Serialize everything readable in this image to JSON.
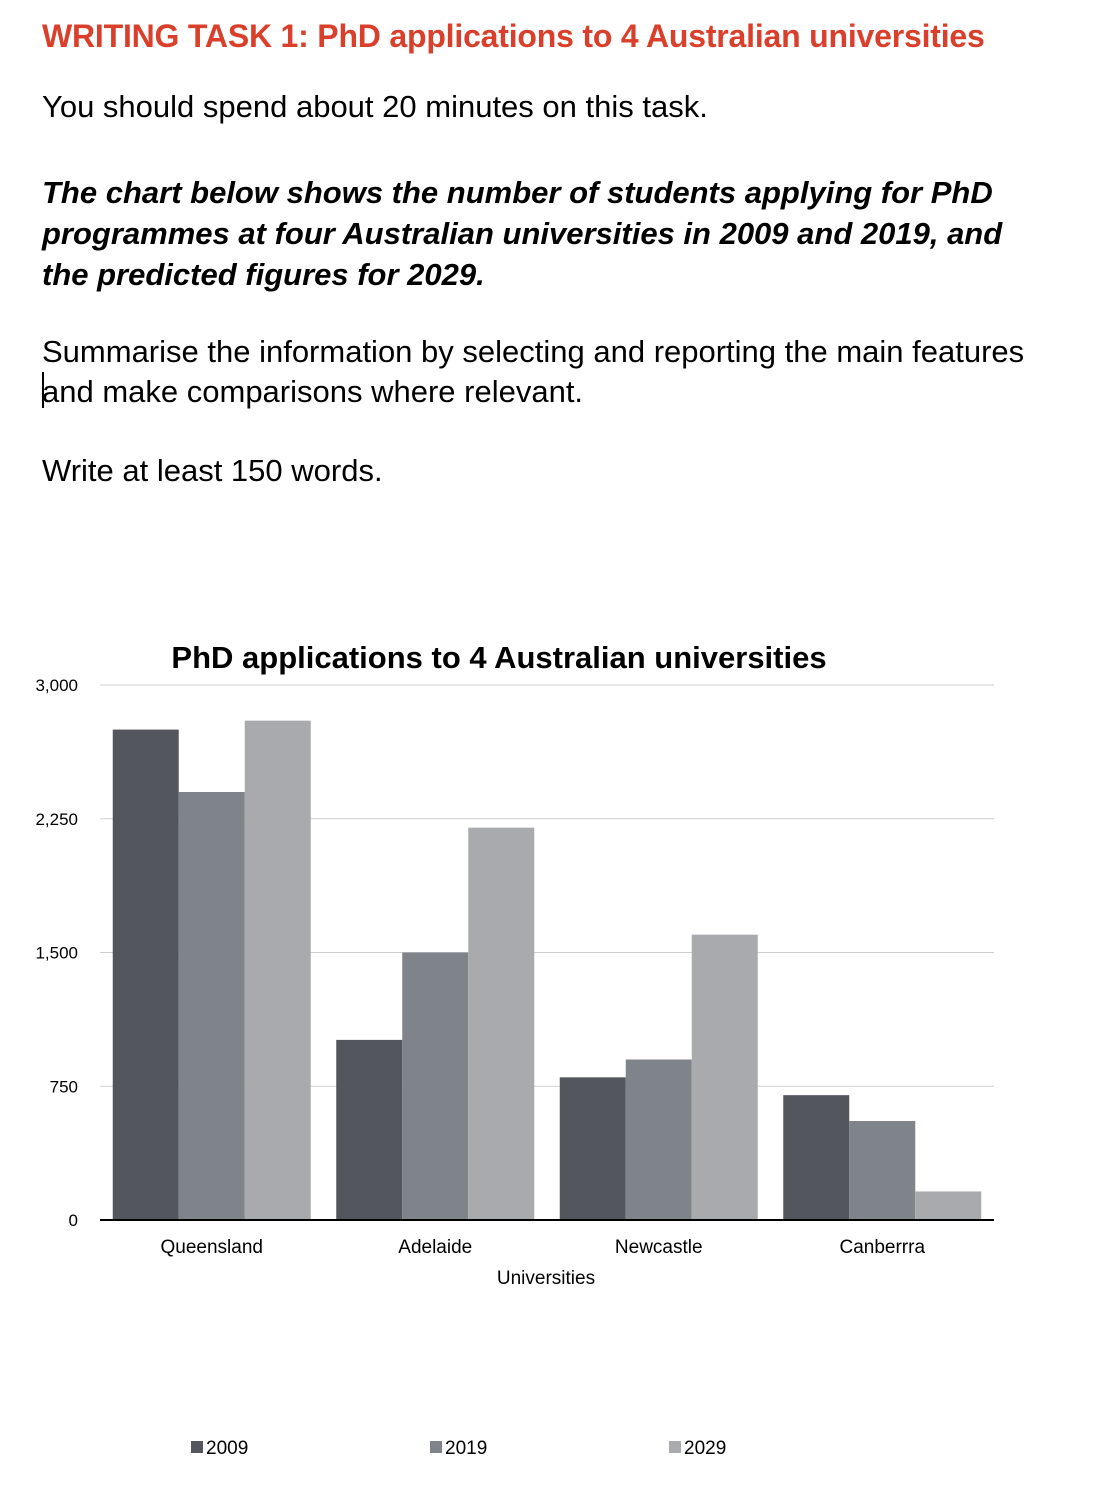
{
  "header": {
    "title": "WRITING TASK 1: PhD applications to 4 Australian universities"
  },
  "prompt": {
    "instruction": "You should spend about 20 minutes on this task.",
    "task": "The chart below shows the number of students applying for PhD programmes at four Australian universities in 2009 and 2019, and the predicted figures for 2029.",
    "summary": "Summarise the information by selecting and reporting the main features and make comparisons where relevant.",
    "word_limit": "Write at least 150 words."
  },
  "chart_data": {
    "type": "bar",
    "title": "PhD applications to 4 Australian universities",
    "xlabel": "Universities",
    "ylabel": "",
    "categories": [
      "Queensland",
      "Adelaide",
      "Newcastle",
      "Canberrra"
    ],
    "series": [
      {
        "name": "2009",
        "values": [
          2750,
          1010,
          800,
          700
        ],
        "color": "#53565d"
      },
      {
        "name": "2019",
        "values": [
          2400,
          1500,
          900,
          555
        ],
        "color": "#7f838a"
      },
      {
        "name": "2029",
        "values": [
          2800,
          2200,
          1600,
          160
        ],
        "color": "#a8aaad"
      }
    ],
    "ylim": [
      0,
      3000
    ],
    "yticks": [
      0,
      750,
      1500,
      2250,
      3000
    ],
    "ytick_labels": [
      "0",
      "750",
      "1,500",
      "2,250",
      "3,000"
    ],
    "grid": true,
    "legend": "bottom"
  }
}
